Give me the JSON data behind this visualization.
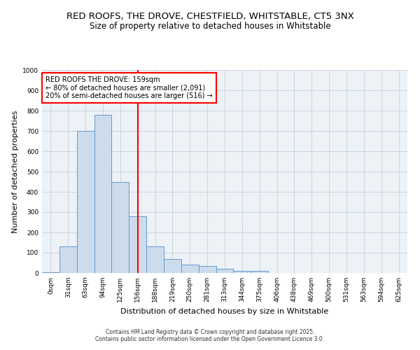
{
  "title": "RED ROOFS, THE DROVE, CHESTFIELD, WHITSTABLE, CT5 3NX",
  "subtitle": "Size of property relative to detached houses in Whitstable",
  "xlabel": "Distribution of detached houses by size in Whitstable",
  "ylabel": "Number of detached properties",
  "bin_labels": [
    "0sqm",
    "31sqm",
    "63sqm",
    "94sqm",
    "125sqm",
    "156sqm",
    "188sqm",
    "219sqm",
    "250sqm",
    "281sqm",
    "313sqm",
    "344sqm",
    "375sqm",
    "406sqm",
    "438sqm",
    "469sqm",
    "500sqm",
    "531sqm",
    "563sqm",
    "594sqm",
    "625sqm"
  ],
  "bar_values": [
    5,
    130,
    700,
    780,
    450,
    280,
    130,
    70,
    40,
    35,
    22,
    10,
    10,
    0,
    0,
    0,
    0,
    0,
    0,
    0,
    0
  ],
  "bar_color": "#ccdcec",
  "bar_edge_color": "#6699cc",
  "bar_width": 1.0,
  "vline_position": 5.5,
  "vline_color": "red",
  "annotation_title": "RED ROOFS THE DROVE: 159sqm",
  "annotation_line1": "← 80% of detached houses are smaller (2,091)",
  "annotation_line2": "20% of semi-detached houses are larger (516) →",
  "annotation_box_color": "white",
  "annotation_box_edge": "red",
  "ylim": [
    0,
    1000
  ],
  "yticks": [
    0,
    100,
    200,
    300,
    400,
    500,
    600,
    700,
    800,
    900,
    1000
  ],
  "grid_color": "#c8d0d8",
  "bg_color": "#edf2f7",
  "footer1": "Contains HM Land Registry data © Crown copyright and database right 2025.",
  "footer2": "Contains public sector information licensed under the Open Government Licence 3.0.",
  "title_fontsize": 9.5,
  "subtitle_fontsize": 8.5,
  "tick_fontsize": 6.5,
  "ylabel_fontsize": 8,
  "xlabel_fontsize": 8,
  "annotation_fontsize": 7,
  "footer_fontsize": 5.5
}
